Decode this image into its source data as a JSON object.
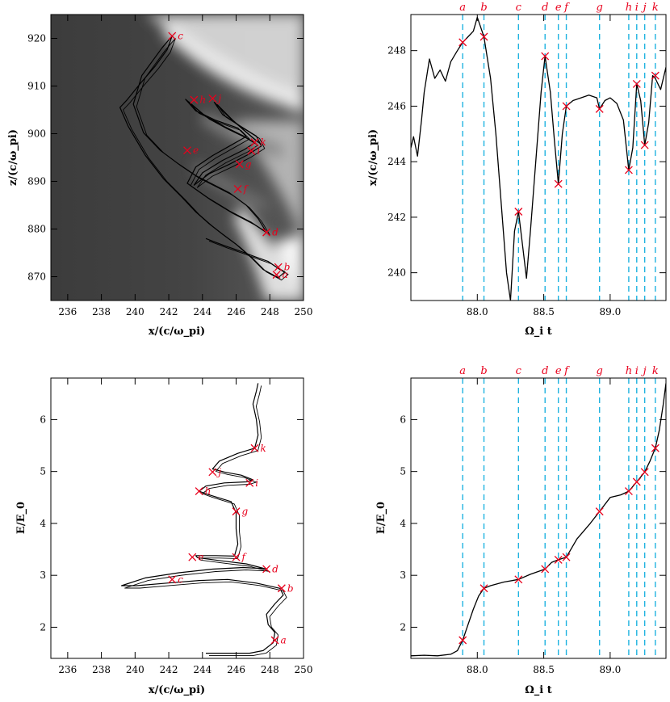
{
  "colors": {
    "marker": "#e8001c",
    "event_line": "#1fb3e0",
    "curve": "#000000",
    "bg_dark": "#3c3c3c"
  },
  "event_letters": [
    "a",
    "b",
    "c",
    "d",
    "e",
    "f",
    "g",
    "h",
    "i",
    "j",
    "k"
  ],
  "chart_data": [
    {
      "id": "p1",
      "type": "line",
      "background": "grayscale density map",
      "xlabel": "x/(c/ω_pi)",
      "ylabel": "z/(c/ω_pi)",
      "xlim": [
        235,
        250
      ],
      "ylim": [
        865,
        925
      ],
      "xticks": [
        236,
        238,
        240,
        242,
        244,
        246,
        248,
        250
      ],
      "yticks": [
        870,
        880,
        890,
        900,
        910,
        920
      ],
      "tick_labels_x": [
        "236",
        "238",
        "240",
        "242",
        "244",
        "246",
        "248",
        "250"
      ],
      "tick_labels_y": [
        "870",
        "880",
        "890",
        "900",
        "910",
        "920"
      ],
      "x": [
        244.2,
        245.3,
        246.2,
        247.1,
        247.9,
        248.4,
        248.9,
        248.5,
        247.6,
        246.9,
        246.0,
        245.2,
        244.4,
        243.6,
        242.8,
        241.7,
        240.6,
        239.6,
        239.1,
        239.5,
        240.3,
        241.2,
        241.9,
        242.2,
        241.6,
        240.4,
        239.9,
        240.5,
        241.5,
        242.6,
        243.6,
        244.6,
        245.6,
        246.6,
        247.3,
        247.8,
        246.9,
        245.6,
        244.3,
        243.1,
        243.6,
        244.6,
        245.7,
        246.6,
        246.1,
        244.8,
        243.6,
        243.0,
        244.2,
        245.3,
        246.4,
        247.1,
        246.5,
        245.2,
        244.0,
        243.5,
        244.4,
        245.6,
        246.7,
        247.5,
        247.2,
        246.3,
        245.2,
        244.7,
        245.6,
        246.5,
        247.3
      ],
      "y": [
        878.0,
        876.5,
        875.4,
        874.2,
        873.2,
        872.0,
        871.0,
        869.8,
        871.5,
        874.0,
        876.8,
        878.9,
        881.1,
        883.6,
        886.6,
        890.5,
        895.5,
        901.5,
        905.5,
        907.0,
        910.5,
        914.2,
        917.6,
        920.5,
        918.0,
        912.2,
        906.2,
        900.2,
        896.5,
        893.6,
        891.2,
        889.4,
        887.6,
        885.0,
        882.2,
        879.3,
        881.4,
        883.8,
        886.6,
        889.6,
        893.0,
        895.4,
        897.6,
        899.4,
        901.2,
        902.8,
        904.8,
        907.2,
        903.6,
        901.5,
        899.6,
        898.1,
        896.7,
        894.4,
        891.8,
        889.2,
        891.6,
        893.6,
        895.6,
        897.4,
        899.5,
        901.5,
        904.0,
        906.6,
        903.4,
        900.6,
        898.2
      ],
      "markers": [
        {
          "label": "a",
          "x": 248.4,
          "y": 870.4
        },
        {
          "label": "b",
          "x": 248.5,
          "y": 872.0
        },
        {
          "label": "c",
          "x": 242.2,
          "y": 920.5
        },
        {
          "label": "d",
          "x": 247.8,
          "y": 879.3
        },
        {
          "label": "e",
          "x": 243.1,
          "y": 896.5
        },
        {
          "label": "f",
          "x": 246.1,
          "y": 888.4
        },
        {
          "label": "g",
          "x": 246.2,
          "y": 893.6
        },
        {
          "label": "h",
          "x": 243.5,
          "y": 907.1
        },
        {
          "label": "i",
          "x": 246.9,
          "y": 896.4
        },
        {
          "label": "j",
          "x": 244.6,
          "y": 907.4
        },
        {
          "label": "k",
          "x": 247.1,
          "y": 898.2
        }
      ]
    },
    {
      "id": "p2",
      "type": "line",
      "xlabel": "Ω_i t",
      "ylabel": "x/(c/ω_pi)",
      "xlim": [
        87.5,
        89.42
      ],
      "ylim": [
        239.0,
        249.3
      ],
      "xticks": [
        88.0,
        88.5,
        89.0
      ],
      "yticks": [
        240,
        242,
        244,
        246,
        248
      ],
      "tick_labels_x": [
        "88.0",
        "88.5",
        "89.0"
      ],
      "tick_labels_y": [
        "240",
        "242",
        "244",
        "246",
        "248"
      ],
      "event_times": [
        87.89,
        88.05,
        88.31,
        88.51,
        88.61,
        88.67,
        88.92,
        89.14,
        89.2,
        89.26,
        89.34
      ],
      "x": [
        87.5,
        87.52,
        87.55,
        87.58,
        87.6,
        87.64,
        87.68,
        87.72,
        87.76,
        87.8,
        87.85,
        87.89,
        87.93,
        87.97,
        88.0,
        88.05,
        88.1,
        88.14,
        88.18,
        88.22,
        88.25,
        88.28,
        88.31,
        88.34,
        88.37,
        88.4,
        88.44,
        88.48,
        88.51,
        88.55,
        88.58,
        88.61,
        88.64,
        88.67,
        88.72,
        88.78,
        88.84,
        88.9,
        88.92,
        88.96,
        89.0,
        89.05,
        89.1,
        89.14,
        89.17,
        89.2,
        89.23,
        89.26,
        89.29,
        89.32,
        89.34,
        89.38,
        89.42
      ],
      "y": [
        244.5,
        244.9,
        244.2,
        245.5,
        246.5,
        247.7,
        247.0,
        247.3,
        246.9,
        247.6,
        248.0,
        248.3,
        248.5,
        248.7,
        249.2,
        248.5,
        247.0,
        245.0,
        242.5,
        240.0,
        239.0,
        241.5,
        242.2,
        241.0,
        239.8,
        241.5,
        244.0,
        246.5,
        247.8,
        246.5,
        244.8,
        243.2,
        245.0,
        246.0,
        246.2,
        246.3,
        246.4,
        246.3,
        245.9,
        246.2,
        246.3,
        246.1,
        245.5,
        243.7,
        244.5,
        246.8,
        246.2,
        244.6,
        245.4,
        247.1,
        247.0,
        246.6,
        247.4
      ],
      "markers": [
        {
          "label": "a",
          "x": 87.89,
          "y": 248.3
        },
        {
          "label": "b",
          "x": 88.05,
          "y": 248.5
        },
        {
          "label": "c",
          "x": 88.31,
          "y": 242.2
        },
        {
          "label": "d",
          "x": 88.51,
          "y": 247.8
        },
        {
          "label": "e",
          "x": 88.61,
          "y": 243.2
        },
        {
          "label": "f",
          "x": 88.67,
          "y": 246.0
        },
        {
          "label": "g",
          "x": 88.92,
          "y": 245.9
        },
        {
          "label": "h",
          "x": 89.14,
          "y": 243.7
        },
        {
          "label": "i",
          "x": 89.2,
          "y": 246.8
        },
        {
          "label": "j",
          "x": 89.26,
          "y": 244.6
        },
        {
          "label": "k",
          "x": 89.34,
          "y": 247.1
        }
      ]
    },
    {
      "id": "p3",
      "type": "line",
      "xlabel": "x/(c/ω_pi)",
      "ylabel": "E/E_0",
      "xlim": [
        235,
        250
      ],
      "ylim": [
        1.4,
        6.8
      ],
      "xticks": [
        236,
        238,
        240,
        242,
        244,
        246,
        248,
        250
      ],
      "yticks": [
        2,
        3,
        4,
        5,
        6
      ],
      "tick_labels_x": [
        "236",
        "238",
        "240",
        "242",
        "244",
        "246",
        "248",
        "250"
      ],
      "tick_labels_y": [
        "2",
        "3",
        "4",
        "5",
        "6"
      ],
      "x": [
        244.2,
        245.5,
        246.8,
        247.6,
        248.2,
        248.3,
        247.9,
        247.8,
        248.3,
        248.8,
        248.6,
        247.2,
        245.5,
        243.8,
        241.9,
        240.1,
        239.2,
        240.6,
        242.6,
        244.6,
        246.4,
        247.6,
        247.8,
        246.6,
        245.1,
        243.7,
        243.6,
        244.8,
        245.9,
        246.1,
        246.0,
        246.0,
        246.0,
        245.7,
        244.4,
        243.8,
        244.2,
        245.3,
        246.6,
        247.0,
        246.3,
        245.3,
        244.6,
        245.0,
        246.1,
        247.1,
        247.3,
        247.2,
        247.0,
        247.2,
        247.3
      ],
      "y": [
        1.5,
        1.5,
        1.5,
        1.55,
        1.7,
        1.9,
        2.05,
        2.25,
        2.45,
        2.62,
        2.75,
        2.85,
        2.92,
        2.9,
        2.85,
        2.8,
        2.8,
        2.95,
        3.05,
        3.12,
        3.15,
        3.13,
        3.12,
        3.22,
        3.28,
        3.34,
        3.38,
        3.38,
        3.37,
        3.6,
        3.9,
        4.1,
        4.2,
        4.42,
        4.55,
        4.62,
        4.72,
        4.78,
        4.8,
        4.84,
        4.93,
        4.99,
        5.05,
        5.2,
        5.35,
        5.45,
        5.7,
        6.0,
        6.3,
        6.55,
        6.7
      ],
      "markers": [
        {
          "label": "a",
          "x": 248.3,
          "y": 1.75
        },
        {
          "label": "b",
          "x": 248.7,
          "y": 2.75
        },
        {
          "label": "c",
          "x": 242.2,
          "y": 2.92
        },
        {
          "label": "d",
          "x": 247.8,
          "y": 3.12
        },
        {
          "label": "e",
          "x": 243.4,
          "y": 3.35
        },
        {
          "label": "f",
          "x": 246.0,
          "y": 3.35
        },
        {
          "label": "g",
          "x": 246.0,
          "y": 4.23
        },
        {
          "label": "h",
          "x": 243.8,
          "y": 4.62
        },
        {
          "label": "i",
          "x": 246.8,
          "y": 4.78
        },
        {
          "label": "j",
          "x": 244.6,
          "y": 4.99
        },
        {
          "label": "k",
          "x": 247.1,
          "y": 5.45
        }
      ]
    },
    {
      "id": "p4",
      "type": "line",
      "xlabel": "Ω_i t",
      "ylabel": "E/E_0",
      "xlim": [
        87.5,
        89.42
      ],
      "ylim": [
        1.4,
        6.8
      ],
      "xticks": [
        88.0,
        88.5,
        89.0
      ],
      "yticks": [
        2,
        3,
        4,
        5,
        6
      ],
      "tick_labels_x": [
        "88.0",
        "88.5",
        "89.0"
      ],
      "tick_labels_y": [
        "2",
        "3",
        "4",
        "5",
        "6"
      ],
      "event_times": [
        87.89,
        88.05,
        88.31,
        88.51,
        88.61,
        88.67,
        88.92,
        89.14,
        89.2,
        89.26,
        89.34
      ],
      "x": [
        87.5,
        87.6,
        87.7,
        87.8,
        87.85,
        87.89,
        87.93,
        87.97,
        88.01,
        88.05,
        88.1,
        88.2,
        88.31,
        88.4,
        88.51,
        88.56,
        88.61,
        88.67,
        88.75,
        88.85,
        88.92,
        89.0,
        89.08,
        89.14,
        89.2,
        89.26,
        89.3,
        89.34,
        89.37,
        89.4,
        89.42
      ],
      "y": [
        1.45,
        1.46,
        1.45,
        1.48,
        1.55,
        1.75,
        2.05,
        2.35,
        2.6,
        2.75,
        2.8,
        2.87,
        2.92,
        3.02,
        3.12,
        3.25,
        3.3,
        3.35,
        3.7,
        4.0,
        4.23,
        4.5,
        4.55,
        4.62,
        4.8,
        4.99,
        5.2,
        5.45,
        5.8,
        6.3,
        6.7
      ],
      "markers": [
        {
          "label": "a",
          "x": 87.89,
          "y": 1.75
        },
        {
          "label": "b",
          "x": 88.05,
          "y": 2.75
        },
        {
          "label": "c",
          "x": 88.31,
          "y": 2.92
        },
        {
          "label": "d",
          "x": 88.51,
          "y": 3.12
        },
        {
          "label": "e",
          "x": 88.61,
          "y": 3.3
        },
        {
          "label": "f",
          "x": 88.67,
          "y": 3.35
        },
        {
          "label": "g",
          "x": 88.92,
          "y": 4.23
        },
        {
          "label": "h",
          "x": 89.14,
          "y": 4.62
        },
        {
          "label": "i",
          "x": 89.2,
          "y": 4.8
        },
        {
          "label": "j",
          "x": 89.26,
          "y": 4.99
        },
        {
          "label": "k",
          "x": 89.34,
          "y": 5.45
        }
      ]
    }
  ]
}
